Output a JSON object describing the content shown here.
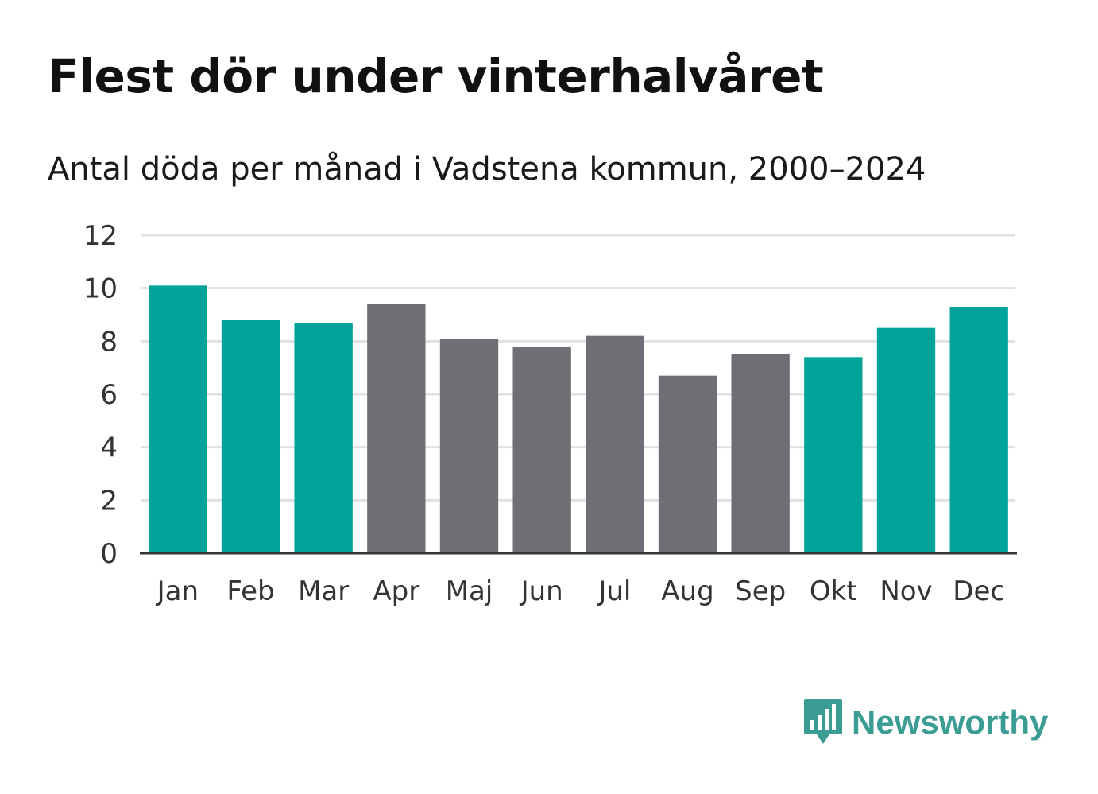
{
  "header": {
    "title": "Flest dör under vinterhalvåret",
    "subtitle": "Antal döda per månad i Vadstena kommun, 2000–2024"
  },
  "chart_data": {
    "type": "bar",
    "title": "Flest dör under vinterhalvåret",
    "subtitle": "Antal döda per månad i Vadstena kommun, 2000–2024",
    "categories": [
      "Jan",
      "Feb",
      "Mar",
      "Apr",
      "Maj",
      "Jun",
      "Jul",
      "Aug",
      "Sep",
      "Okt",
      "Nov",
      "Dec"
    ],
    "values": [
      10.1,
      8.8,
      8.7,
      9.4,
      8.1,
      7.8,
      8.2,
      6.7,
      7.5,
      7.4,
      8.5,
      9.3
    ],
    "winter_half": [
      true,
      true,
      true,
      false,
      false,
      false,
      false,
      false,
      false,
      true,
      true,
      true
    ],
    "ylim": [
      0,
      12
    ],
    "yticks": [
      0,
      2,
      4,
      6,
      8,
      10,
      12
    ],
    "xlabel": "",
    "ylabel": "",
    "grid": true,
    "colors": {
      "winter": "#00a39a",
      "summer": "#6e6e75",
      "grid": "#e1e1e1",
      "axis": "#333333"
    }
  },
  "logo": {
    "name": "Newsworthy",
    "icon": "newsworthy-chart-bubble-icon",
    "color": "#3a9c93"
  }
}
